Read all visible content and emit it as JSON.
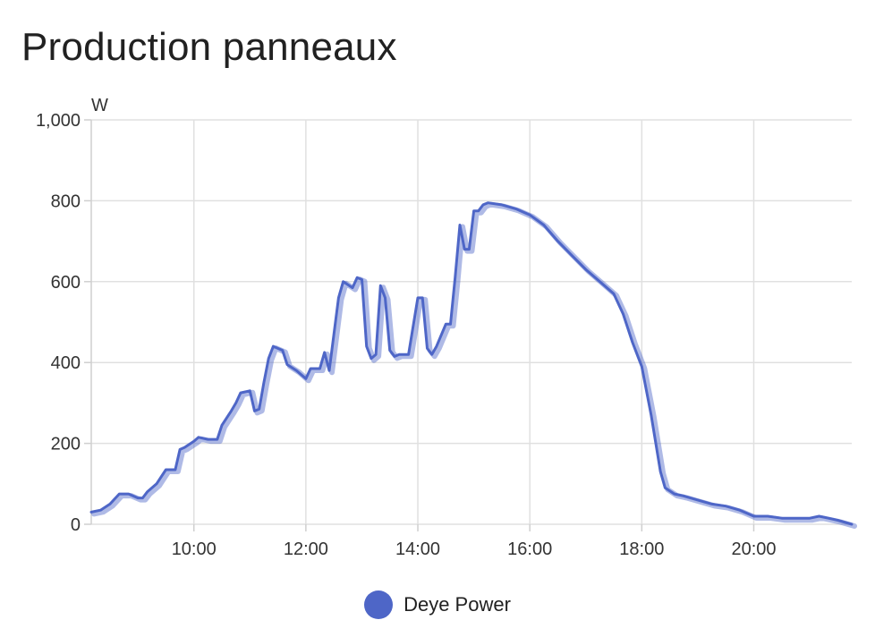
{
  "header": {
    "title": "Production panneaux"
  },
  "chart_data": {
    "type": "line",
    "title": "Production panneaux",
    "xlabel": "",
    "ylabel": "W",
    "xlim": [
      "08:10",
      "21:45"
    ],
    "ylim": [
      0,
      1000
    ],
    "x_ticks": [
      "10:00",
      "12:00",
      "14:00",
      "16:00",
      "18:00",
      "20:00"
    ],
    "y_ticks": [
      "0",
      "200",
      "400",
      "600",
      "800",
      "1,000"
    ],
    "grid": true,
    "legend_position": "bottom",
    "series": [
      {
        "name": "Deye Power",
        "color": "#4e66c7",
        "points": [
          [
            "08:10",
            30
          ],
          [
            "08:20",
            35
          ],
          [
            "08:30",
            50
          ],
          [
            "08:40",
            75
          ],
          [
            "08:50",
            75
          ],
          [
            "09:00",
            65
          ],
          [
            "09:05",
            65
          ],
          [
            "09:10",
            80
          ],
          [
            "09:20",
            100
          ],
          [
            "09:30",
            135
          ],
          [
            "09:40",
            135
          ],
          [
            "09:45",
            185
          ],
          [
            "09:50",
            190
          ],
          [
            "10:00",
            205
          ],
          [
            "10:05",
            215
          ],
          [
            "10:15",
            210
          ],
          [
            "10:25",
            210
          ],
          [
            "10:30",
            245
          ],
          [
            "10:40",
            280
          ],
          [
            "10:45",
            300
          ],
          [
            "10:50",
            325
          ],
          [
            "11:00",
            330
          ],
          [
            "11:05",
            280
          ],
          [
            "11:10",
            285
          ],
          [
            "11:15",
            350
          ],
          [
            "11:20",
            410
          ],
          [
            "11:25",
            440
          ],
          [
            "11:35",
            430
          ],
          [
            "11:40",
            395
          ],
          [
            "11:50",
            380
          ],
          [
            "12:00",
            360
          ],
          [
            "12:05",
            385
          ],
          [
            "12:15",
            385
          ],
          [
            "12:20",
            425
          ],
          [
            "12:25",
            380
          ],
          [
            "12:30",
            470
          ],
          [
            "12:35",
            560
          ],
          [
            "12:40",
            600
          ],
          [
            "12:50",
            585
          ],
          [
            "12:55",
            610
          ],
          [
            "13:00",
            605
          ],
          [
            "13:05",
            440
          ],
          [
            "13:10",
            410
          ],
          [
            "13:15",
            420
          ],
          [
            "13:20",
            590
          ],
          [
            "13:25",
            560
          ],
          [
            "13:30",
            430
          ],
          [
            "13:35",
            415
          ],
          [
            "13:40",
            420
          ],
          [
            "13:50",
            420
          ],
          [
            "14:00",
            560
          ],
          [
            "14:05",
            560
          ],
          [
            "14:10",
            435
          ],
          [
            "14:15",
            420
          ],
          [
            "14:20",
            440
          ],
          [
            "14:30",
            495
          ],
          [
            "14:35",
            495
          ],
          [
            "14:40",
            610
          ],
          [
            "14:45",
            740
          ],
          [
            "14:50",
            680
          ],
          [
            "14:55",
            680
          ],
          [
            "15:00",
            775
          ],
          [
            "15:05",
            775
          ],
          [
            "15:10",
            790
          ],
          [
            "15:15",
            795
          ],
          [
            "15:30",
            790
          ],
          [
            "15:45",
            780
          ],
          [
            "16:00",
            765
          ],
          [
            "16:15",
            740
          ],
          [
            "16:30",
            700
          ],
          [
            "16:45",
            665
          ],
          [
            "17:00",
            630
          ],
          [
            "17:15",
            600
          ],
          [
            "17:30",
            570
          ],
          [
            "17:40",
            520
          ],
          [
            "17:50",
            450
          ],
          [
            "18:00",
            390
          ],
          [
            "18:10",
            270
          ],
          [
            "18:20",
            130
          ],
          [
            "18:25",
            90
          ],
          [
            "18:35",
            75
          ],
          [
            "18:45",
            70
          ],
          [
            "19:00",
            60
          ],
          [
            "19:15",
            50
          ],
          [
            "19:30",
            45
          ],
          [
            "19:45",
            35
          ],
          [
            "20:00",
            20
          ],
          [
            "20:15",
            20
          ],
          [
            "20:30",
            15
          ],
          [
            "21:00",
            15
          ],
          [
            "21:10",
            20
          ],
          [
            "21:20",
            15
          ],
          [
            "21:30",
            10
          ],
          [
            "21:45",
            0
          ]
        ]
      }
    ]
  }
}
